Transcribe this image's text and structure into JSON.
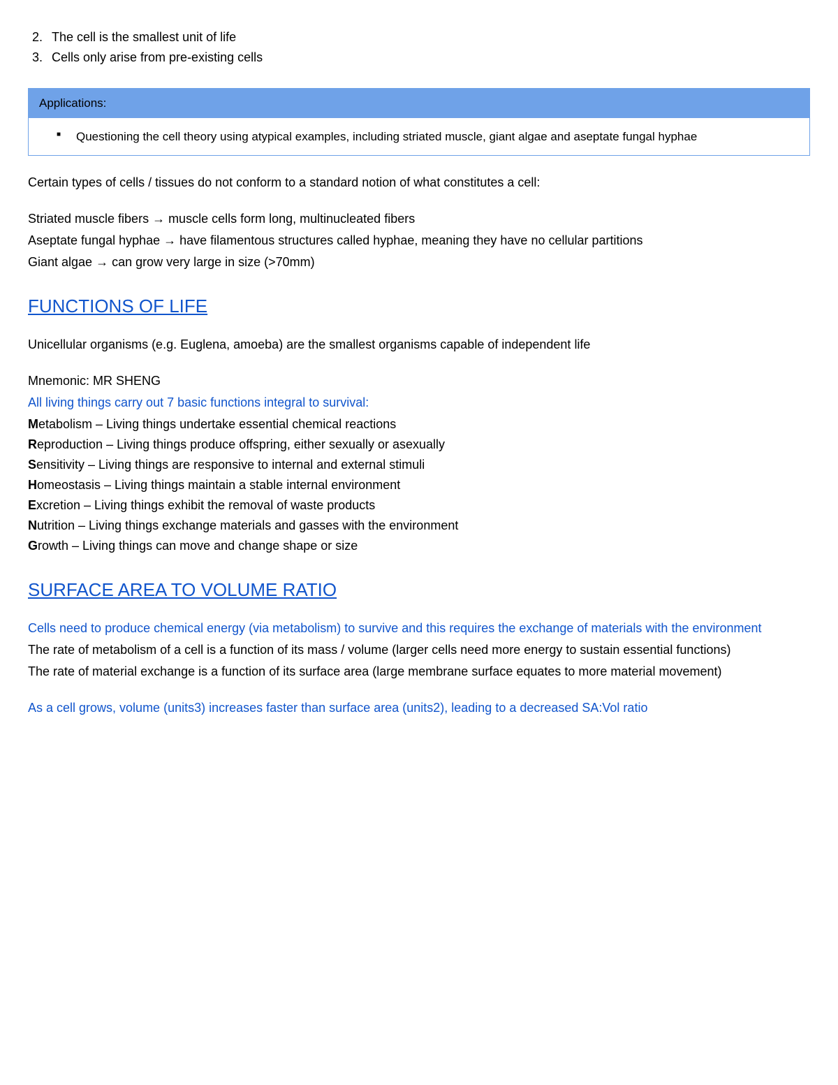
{
  "numbered": {
    "start": 2,
    "items": [
      "The cell is the smallest unit of life",
      "Cells only arise from pre-existing cells"
    ]
  },
  "box": {
    "header": "Applications:",
    "bullet": "Questioning the cell theory using atypical examples, including striated muscle, giant algae and aseptate fungal hyphae"
  },
  "intro_cells": "Certain types of cells / tissues do not conform to a standard notion of what constitutes a cell:",
  "atypical": {
    "line1": "Striated muscle fibers → muscle cells form long, multinucleated fibers",
    "line2": "Aseptate fungal hyphae → have filamentous structures called hyphae, meaning they have no cellular partitions",
    "line3": "Giant algae → can grow very large in size (>70mm)"
  },
  "functions": {
    "heading": "FUNCTIONS OF LIFE",
    "unicellular": "Unicellular organisms (e.g. Euglena, amoeba) are the smallest organisms capable of independent life",
    "mnemonic_label": "Mnemonic: MR SHENG",
    "blue_intro": "All living things carry out 7 basic functions integral to survival:",
    "items": [
      {
        "b": "M",
        "rest": "etabolism – Living things undertake essential chemical reactions"
      },
      {
        "b": "R",
        "rest": "eproduction – Living things produce offspring, either sexually or asexually"
      },
      {
        "b": "S",
        "rest": "ensitivity – Living things are responsive to internal and external stimuli"
      },
      {
        "b": "H",
        "rest": "omeostasis – Living things maintain a stable internal environment"
      },
      {
        "b": "E",
        "rest": "xcretion – Living things exhibit the removal of waste products"
      },
      {
        "b": "N",
        "rest": "utrition – Living things exchange materials and gasses with the environment"
      },
      {
        "b": "G",
        "rest": "rowth – Living things can move and change shape or size"
      }
    ]
  },
  "savol": {
    "heading": "SURFACE AREA TO VOLUME RATIO",
    "blue1": "Cells need to produce chemical energy (via metabolism) to survive and this requires the exchange of materials with the environment",
    "p1": "The rate of metabolism of a cell is a function of its mass / volume  (larger cells need more energy to sustain essential functions)",
    "p2": "The rate of material exchange is a function of its surface area  (large membrane surface equates to more material movement)",
    "blue2": "As a cell grows, volume (units3) increases faster than surface area (units2), leading to a decreased SA:Vol ratio"
  }
}
